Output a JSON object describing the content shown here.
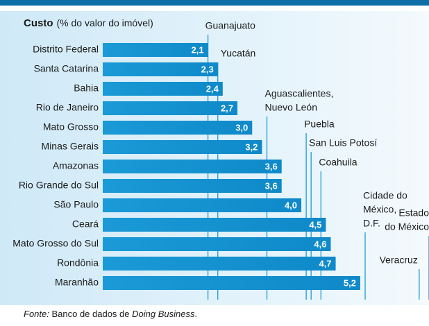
{
  "chart_data": {
    "type": "bar",
    "orientation": "horizontal",
    "title": "Custo",
    "subtitle": "(% do valor do imóvel)",
    "categories": [
      "Distrito Federal",
      "Santa Catarina",
      "Bahia",
      "Rio de Janeiro",
      "Mato Grosso",
      "Minas Gerais",
      "Amazonas",
      "Rio Grande do Sul",
      "São Paulo",
      "Ceará",
      "Mato Grosso do Sul",
      "Rondônia",
      "Maranhão"
    ],
    "values": [
      2.1,
      2.3,
      2.4,
      2.7,
      3.0,
      3.2,
      3.6,
      3.6,
      4.0,
      4.5,
      4.6,
      4.7,
      5.2
    ],
    "value_labels": [
      "2,1",
      "2,3",
      "2,4",
      "2,7",
      "3,0",
      "3,2",
      "3,6",
      "3,6",
      "4,0",
      "4,5",
      "4,6",
      "4,7",
      "5,2"
    ],
    "color": "#1a9ad6",
    "xlim": [
      0,
      6.6
    ],
    "reference_lines": [
      {
        "label": [
          "Guanajuato"
        ],
        "value": 2.1
      },
      {
        "label": [
          "Yucatán"
        ],
        "value": 2.3
      },
      {
        "label": [
          "Aguascalientes,",
          "Nuevo León"
        ],
        "value": 3.3
      },
      {
        "label": [
          "Puebla"
        ],
        "value": 4.1
      },
      {
        "label": [
          "San Luis Potosí"
        ],
        "value": 4.2
      },
      {
        "label": [
          "Coahuila"
        ],
        "value": 4.4
      },
      {
        "label": [
          "Cidade do",
          "México,",
          "D.F."
        ],
        "value": 5.3
      },
      {
        "label": [
          "Estado",
          "do México"
        ],
        "value": 6.6
      },
      {
        "label": [
          "Veracruz"
        ],
        "value": 6.4
      }
    ],
    "source": {
      "prefix": "Fonte:",
      "text": " Banco de dados de ",
      "emphasis": "Doing Business",
      "end": "."
    }
  }
}
